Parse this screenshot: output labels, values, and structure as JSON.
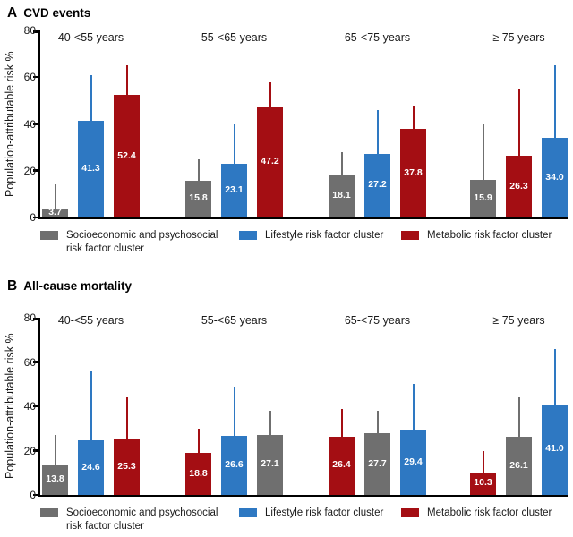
{
  "colors": {
    "socioeconomic": "#6F6F6F",
    "lifestyle": "#2E78C2",
    "metabolic": "#A40E13",
    "axis": "#000000",
    "bar_label": "#FFFFFF"
  },
  "legend": {
    "items": [
      {
        "series": "socioeconomic",
        "label": "Socioeconomic and psychosocial risk factor cluster"
      },
      {
        "series": "lifestyle",
        "label": "Lifestyle risk factor cluster"
      },
      {
        "series": "metabolic",
        "label": "Metabolic risk factor cluster"
      }
    ]
  },
  "chart_data": [
    {
      "type": "bar",
      "panel_letter": "A",
      "title": "CVD events",
      "ylabel": "Population-attributable risk %",
      "ylim": [
        0,
        80
      ],
      "yticks": [
        0,
        20,
        40,
        60,
        80
      ],
      "ytick_labels": [
        "0",
        "20",
        "40",
        "60",
        "80"
      ],
      "legend_position": "bottom",
      "grid": false,
      "groups": [
        {
          "label": "40-<55 years",
          "bars": [
            {
              "series": "socioeconomic",
              "value": 3.7,
              "label": "3.7",
              "upper": 14
            },
            {
              "series": "lifestyle",
              "value": 41.3,
              "label": "41.3",
              "upper": 61
            },
            {
              "series": "metabolic",
              "value": 52.4,
              "label": "52.4",
              "upper": 65
            }
          ]
        },
        {
          "label": "55-<65 years",
          "bars": [
            {
              "series": "socioeconomic",
              "value": 15.8,
              "label": "15.8",
              "upper": 25
            },
            {
              "series": "lifestyle",
              "value": 23.1,
              "label": "23.1",
              "upper": 40
            },
            {
              "series": "metabolic",
              "value": 47.2,
              "label": "47.2",
              "upper": 58
            }
          ]
        },
        {
          "label": "65-<75 years",
          "bars": [
            {
              "series": "socioeconomic",
              "value": 18.1,
              "label": "18.1",
              "upper": 28
            },
            {
              "series": "lifestyle",
              "value": 27.2,
              "label": "27.2",
              "upper": 46
            },
            {
              "series": "metabolic",
              "value": 37.8,
              "label": "37.8",
              "upper": 48
            }
          ]
        },
        {
          "label": "≥ 75 years",
          "bars": [
            {
              "series": "socioeconomic",
              "value": 15.9,
              "label": "15.9",
              "upper": 40
            },
            {
              "series": "metabolic",
              "value": 26.3,
              "label": "26.3",
              "upper": 55
            },
            {
              "series": "lifestyle",
              "value": 34.0,
              "label": "34.0",
              "upper": 65
            }
          ]
        }
      ]
    },
    {
      "type": "bar",
      "panel_letter": "B",
      "title": "All-cause mortality",
      "ylabel": "Population-attributable risk %",
      "ylim": [
        0,
        80
      ],
      "yticks": [
        0,
        20,
        40,
        60,
        80
      ],
      "ytick_labels": [
        "0",
        "20",
        "40",
        "60",
        "80"
      ],
      "legend_position": "bottom",
      "grid": false,
      "groups": [
        {
          "label": "40-<55 years",
          "bars": [
            {
              "series": "socioeconomic",
              "value": 13.8,
              "label": "13.8",
              "upper": 27
            },
            {
              "series": "lifestyle",
              "value": 24.6,
              "label": "24.6",
              "upper": 56
            },
            {
              "series": "metabolic",
              "value": 25.3,
              "label": "25.3",
              "upper": 44
            }
          ]
        },
        {
          "label": "55-<65 years",
          "bars": [
            {
              "series": "metabolic",
              "value": 18.8,
              "label": "18.8",
              "upper": 30
            },
            {
              "series": "lifestyle",
              "value": 26.6,
              "label": "26.6",
              "upper": 49
            },
            {
              "series": "socioeconomic",
              "value": 27.1,
              "label": "27.1",
              "upper": 38
            }
          ]
        },
        {
          "label": "65-<75 years",
          "bars": [
            {
              "series": "metabolic",
              "value": 26.4,
              "label": "26.4",
              "upper": 39
            },
            {
              "series": "socioeconomic",
              "value": 27.7,
              "label": "27.7",
              "upper": 38
            },
            {
              "series": "lifestyle",
              "value": 29.4,
              "label": "29.4",
              "upper": 50
            }
          ]
        },
        {
          "label": "≥ 75 years",
          "bars": [
            {
              "series": "metabolic",
              "value": 10.3,
              "label": "10.3",
              "upper": 20
            },
            {
              "series": "socioeconomic",
              "value": 26.1,
              "label": "26.1",
              "upper": 44
            },
            {
              "series": "lifestyle",
              "value": 41.0,
              "label": "41.0",
              "upper": 66
            }
          ]
        }
      ]
    }
  ]
}
